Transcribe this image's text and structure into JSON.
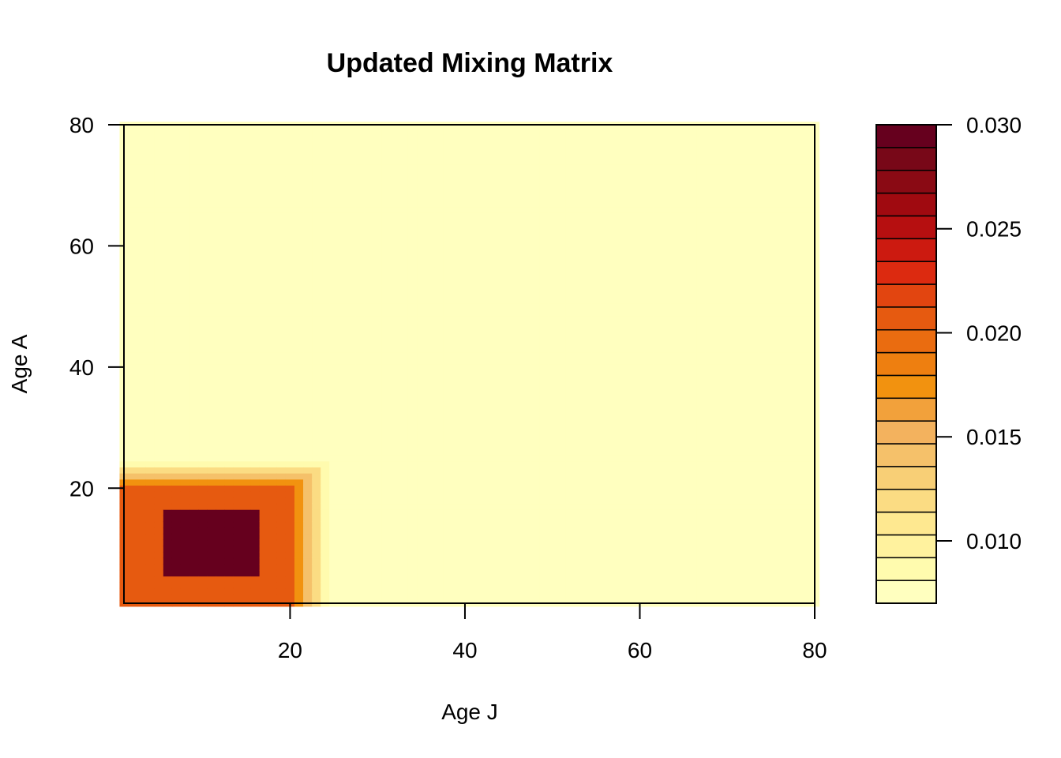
{
  "chart_data": {
    "type": "heatmap",
    "title": "Updated Mixing Matrix",
    "xlabel": "Age J",
    "ylabel": "Age A",
    "xlim": [
      1,
      80
    ],
    "ylim": [
      1,
      80
    ],
    "x_ticks": [
      20,
      40,
      60,
      80
    ],
    "y_ticks": [
      20,
      40,
      60,
      80
    ],
    "z_range": [
      0.007,
      0.03
    ],
    "colorbar_ticks": [
      "0.010",
      "0.015",
      "0.020",
      "0.025",
      "0.030"
    ],
    "colorbar_tick_values": [
      0.01,
      0.015,
      0.02,
      0.025,
      0.03
    ],
    "palette": [
      "#FFFFBF",
      "#FFFBAE",
      "#FFF29E",
      "#FEE890",
      "#FBDC83",
      "#F8CF76",
      "#F5C16A",
      "#F3B25E",
      "#F2A13B",
      "#F2920F",
      "#EE7F10",
      "#EA6C10",
      "#E65A10",
      "#E24510",
      "#DC2A10",
      "#CC1A10",
      "#B60F10",
      "#A00A10",
      "#8A0A14",
      "#780818",
      "#66001E"
    ],
    "regions": [
      {
        "name": "background",
        "x": [
          1,
          80
        ],
        "y": [
          1,
          80
        ],
        "value": 0.0072
      },
      {
        "name": "young-block",
        "x": [
          1,
          20
        ],
        "y": [
          1,
          20
        ],
        "value": 0.0205
      },
      {
        "name": "core-block",
        "x": [
          6,
          16
        ],
        "y": [
          6,
          16
        ],
        "value": 0.0298
      }
    ]
  }
}
